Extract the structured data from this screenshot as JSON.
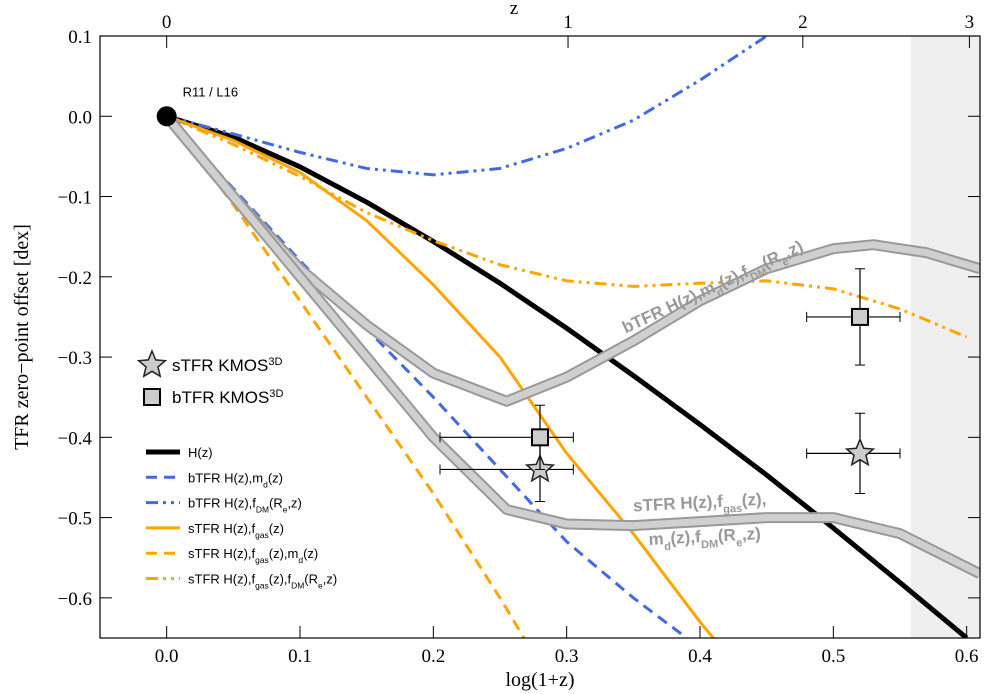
{
  "chart_data": {
    "type": "line",
    "xlabel": "log(1+z)",
    "ylabel": "TFR zero−point offset [dex]",
    "x2label": "z",
    "xlim": [
      -0.05,
      0.61
    ],
    "ylim": [
      -0.65,
      0.1
    ],
    "xticks": [
      {
        "value": 0,
        "label": "0.0"
      },
      0.1,
      0.2,
      0.3,
      0.4,
      0.5,
      0.6
    ],
    "yticks": [
      {
        "value": -0.6,
        "label": "−0.6"
      },
      {
        "value": -0.5,
        "label": "−0.5"
      },
      {
        "value": -0.4,
        "label": "−0.4"
      },
      {
        "value": -0.3,
        "label": "−0.3"
      },
      {
        "value": -0.2,
        "label": "−0.2"
      },
      {
        "value": -0.1,
        "label": "−0.1"
      },
      {
        "value": 0,
        "label": "0.0"
      },
      0.1
    ],
    "x2ticks": [
      0,
      1,
      2,
      3
    ],
    "x2scale": "log10(1+z)",
    "shaded_x": [
      0.558,
      0.61
    ],
    "annotation": "R11 / L16",
    "annotation_point": [
      0,
      0
    ],
    "series": [
      {
        "name": [
          "H(z)"
        ],
        "style": "solid",
        "color": "#000000",
        "width": 5,
        "x": [
          0,
          0.05,
          0.1,
          0.15,
          0.2,
          0.25,
          0.3,
          0.35,
          0.4,
          0.45,
          0.5,
          0.55,
          0.6
        ],
        "values": [
          0,
          -0.026,
          -0.063,
          -0.107,
          -0.156,
          -0.208,
          -0.264,
          -0.323,
          -0.384,
          -0.447,
          -0.513,
          -0.581,
          -0.65
        ]
      },
      {
        "name": [
          "bTFR H(z),m",
          "d",
          "(z)"
        ],
        "style": "dashed",
        "color": "#4169e1",
        "width": 3,
        "x": [
          0,
          0.05,
          0.1,
          0.15,
          0.2,
          0.25,
          0.3,
          0.35,
          0.39
        ],
        "values": [
          0,
          -0.09,
          -0.18,
          -0.265,
          -0.35,
          -0.44,
          -0.53,
          -0.6,
          -0.65
        ]
      },
      {
        "name": [
          "bTFR H(z),f",
          "DM",
          "(R",
          "e",
          ",z)"
        ],
        "style": "dashdot",
        "color": "#4169e1",
        "width": 3,
        "x": [
          0,
          0.05,
          0.1,
          0.15,
          0.2,
          0.25,
          0.3,
          0.35,
          0.4,
          0.45
        ],
        "values": [
          0,
          -0.022,
          -0.045,
          -0.065,
          -0.073,
          -0.065,
          -0.04,
          -0.005,
          0.045,
          0.1
        ]
      },
      {
        "name": [
          "sTFR H(z),f",
          "gas",
          "(z)"
        ],
        "style": "solid",
        "color": "#ffa500",
        "width": 3,
        "x": [
          0,
          0.05,
          0.1,
          0.15,
          0.2,
          0.25,
          0.3,
          0.35,
          0.4,
          0.41
        ],
        "values": [
          0,
          -0.03,
          -0.07,
          -0.13,
          -0.21,
          -0.3,
          -0.42,
          -0.52,
          -0.63,
          -0.65
        ]
      },
      {
        "name": [
          "sTFR H(z),f",
          "gas",
          "(z),m",
          "d",
          "(z)"
        ],
        "style": "dashed",
        "color": "#ffa500",
        "width": 3,
        "x": [
          0,
          0.05,
          0.1,
          0.15,
          0.2,
          0.25,
          0.268
        ],
        "values": [
          0,
          -0.11,
          -0.23,
          -0.35,
          -0.47,
          -0.6,
          -0.65
        ]
      },
      {
        "name": [
          "sTFR H(z),f",
          "gas",
          "(z),f",
          "DM",
          "(R",
          "e",
          ",z)"
        ],
        "style": "dashdot",
        "color": "#ffa500",
        "width": 3,
        "x": [
          0,
          0.05,
          0.1,
          0.15,
          0.2,
          0.25,
          0.3,
          0.35,
          0.4,
          0.45,
          0.5,
          0.55,
          0.6
        ],
        "values": [
          0,
          -0.035,
          -0.075,
          -0.12,
          -0.155,
          -0.185,
          -0.205,
          -0.212,
          -0.208,
          -0.205,
          -0.215,
          -0.24,
          -0.275
        ]
      },
      {
        "label": [
          [
            "bTFR H(z),m",
            "d",
            "(z),f",
            "DM",
            "(R",
            "e",
            ",z)"
          ]
        ],
        "style": "band",
        "color": "#999999",
        "x": [
          0,
          0.05,
          0.1,
          0.15,
          0.2,
          0.255,
          0.3,
          0.35,
          0.4,
          0.45,
          0.5,
          0.53,
          0.57,
          0.61
        ],
        "values": [
          0,
          -0.1,
          -0.19,
          -0.26,
          -0.32,
          -0.355,
          -0.325,
          -0.28,
          -0.23,
          -0.19,
          -0.165,
          -0.16,
          -0.17,
          -0.19
        ]
      },
      {
        "label": [
          [
            "sTFR H(z),f",
            "gas",
            "(z),"
          ],
          [
            "m",
            "d",
            "(z),f",
            "DM",
            "(R",
            "e",
            ",z)"
          ]
        ],
        "style": "band",
        "color": "#999999",
        "x": [
          0,
          0.05,
          0.1,
          0.15,
          0.2,
          0.255,
          0.3,
          0.35,
          0.4,
          0.45,
          0.5,
          0.55,
          0.61
        ],
        "values": [
          0,
          -0.1,
          -0.2,
          -0.3,
          -0.4,
          -0.49,
          -0.508,
          -0.51,
          -0.505,
          -0.5,
          -0.5,
          -0.52,
          -0.57
        ]
      },
      {
        "name": [
          "sTFR KMOS",
          "3D"
        ],
        "style": "star",
        "color": "#cccccc",
        "x": [
          0.28,
          0.52
        ],
        "values": [
          -0.44,
          -0.42
        ],
        "xlo": [
          0.205,
          0.48
        ],
        "xhi": [
          0.305,
          0.55
        ],
        "ylo": [
          -0.48,
          -0.47
        ],
        "yhi": [
          -0.4,
          -0.37
        ]
      },
      {
        "name": [
          "bTFR KMOS",
          "3D"
        ],
        "style": "square",
        "color": "#cccccc",
        "x": [
          0.28,
          0.52
        ],
        "values": [
          -0.4,
          -0.25
        ],
        "xlo": [
          0.205,
          0.48
        ],
        "xhi": [
          0.305,
          0.55
        ],
        "ylo": [
          -0.44,
          -0.31
        ],
        "yhi": [
          -0.36,
          -0.19
        ]
      }
    ]
  }
}
